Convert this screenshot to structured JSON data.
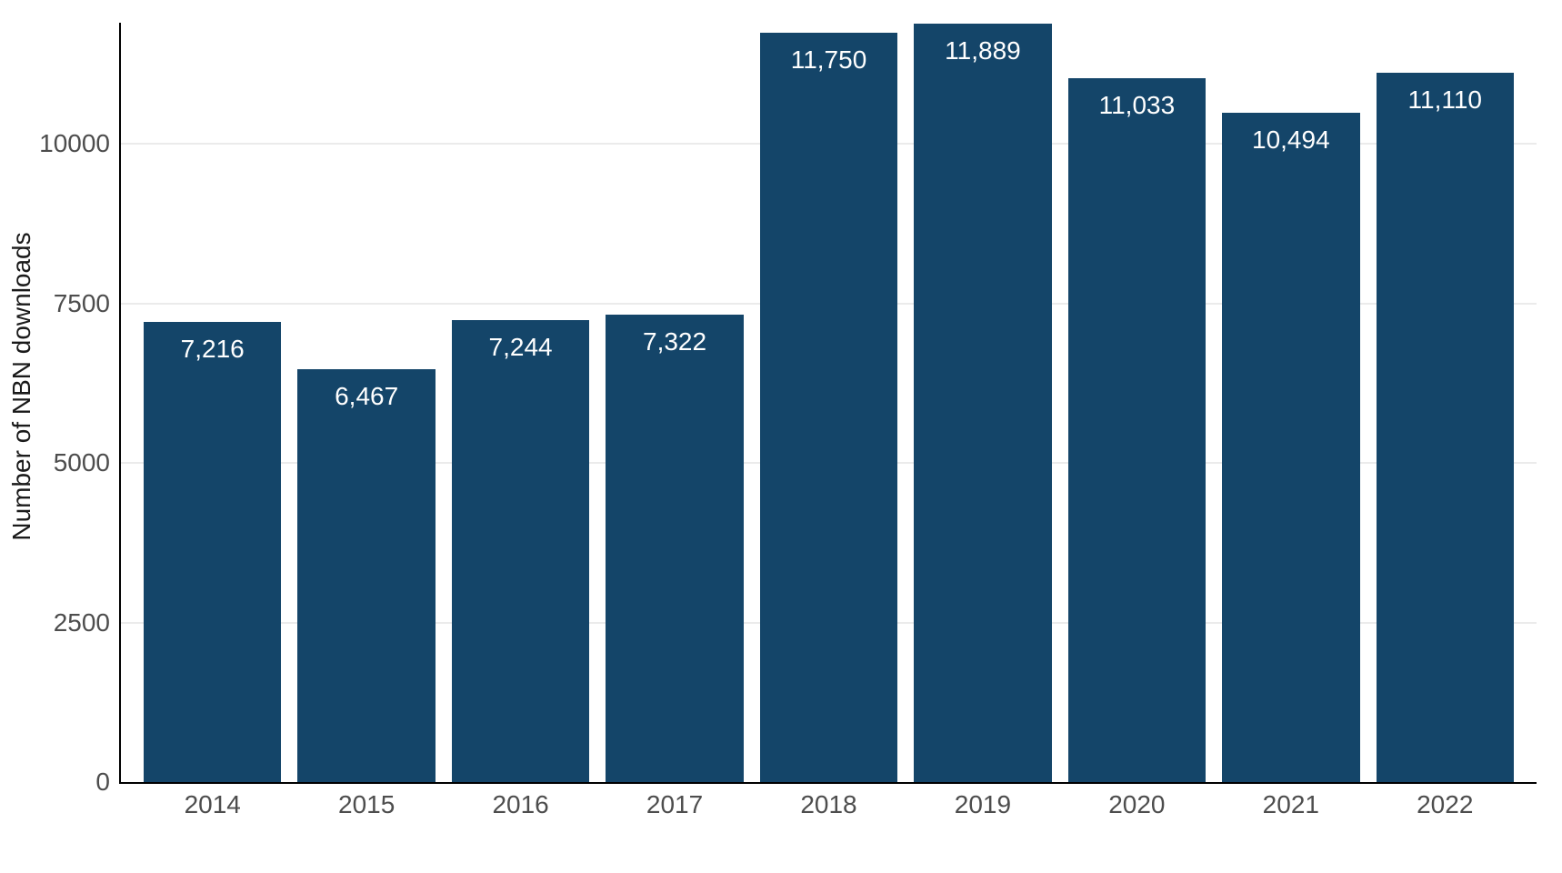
{
  "chart_data": {
    "type": "bar",
    "title": "",
    "xlabel": "",
    "ylabel": "Number of NBN downloads",
    "categories": [
      "2014",
      "2015",
      "2016",
      "2017",
      "2018",
      "2019",
      "2020",
      "2021",
      "2022"
    ],
    "values": [
      7216,
      6467,
      7244,
      7322,
      11750,
      11889,
      11033,
      10494,
      11110
    ],
    "bar_labels": [
      "7,216",
      "6,467",
      "7,244",
      "7,322",
      "11,750",
      "11,889",
      "11,033",
      "10,494",
      "11,110"
    ],
    "yticks": [
      0,
      2500,
      5000,
      7500,
      10000
    ],
    "ytick_labels": [
      "0",
      "2500",
      "5000",
      "7500",
      "10000"
    ],
    "ylim": [
      0,
      11900
    ],
    "grid": "horizontal-only",
    "legend": "none",
    "colors": {
      "bar": "#144569",
      "grid": "#ebebeb",
      "axis": "#000000",
      "tick_text": "#4d4d4d",
      "bar_label_text": "#ffffff",
      "ylabel_text": "#1a1a1a",
      "background": "#ffffff"
    }
  }
}
